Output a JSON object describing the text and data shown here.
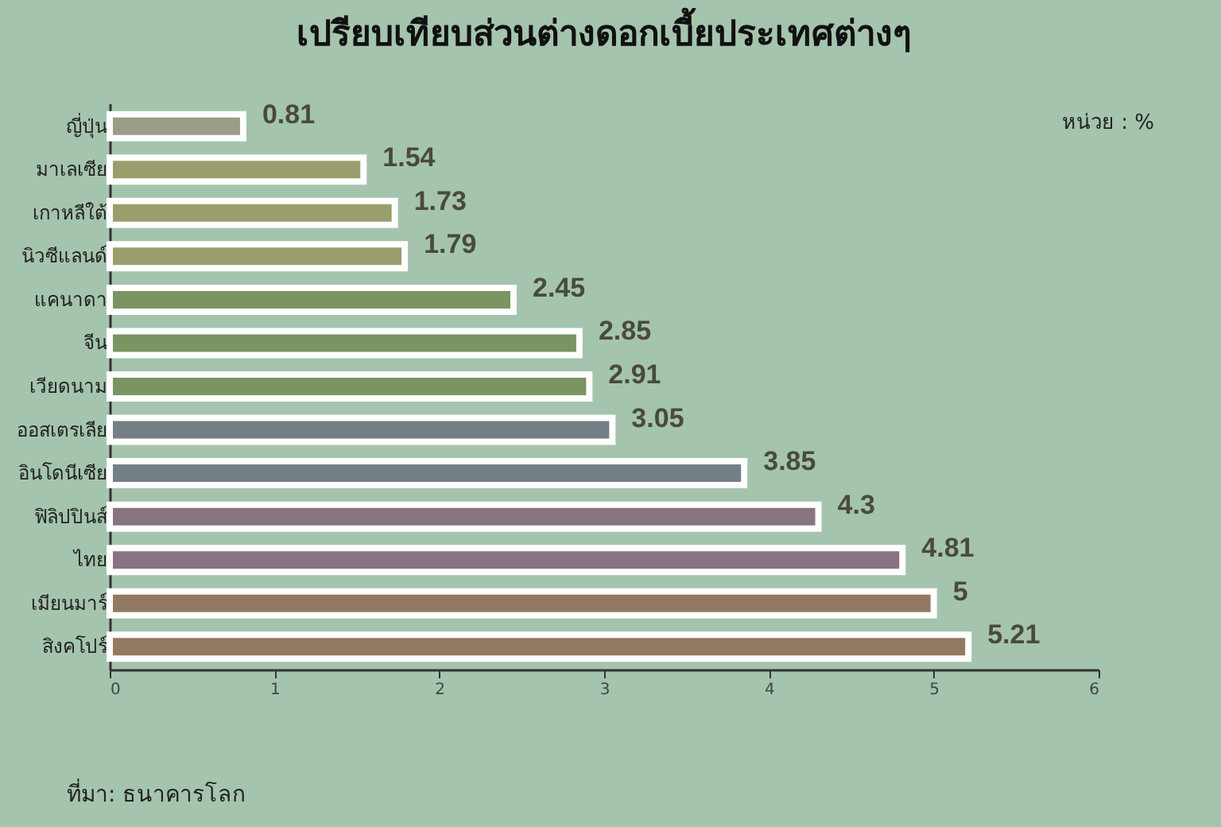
{
  "chart_data": {
    "type": "bar",
    "orientation": "horizontal",
    "title": "เปรียบเทียบส่วนต่างดอกเบี้ยประเทศต่างๆ",
    "categories": [
      "ญี่ปุ่น",
      "มาเลเซีย",
      "เกาหลีใต้",
      "นิวซีแลนด์",
      "แคนาดา",
      "จีน",
      "เวียดนาม",
      "ออสเตรเลีย",
      "อินโดนีเซีย",
      "ฟิลิปปินส์",
      "ไทย",
      "เมียนมาร์",
      "สิงคโปร์"
    ],
    "values": [
      0.81,
      1.54,
      1.73,
      1.79,
      2.45,
      2.85,
      2.91,
      3.05,
      3.85,
      4.3,
      4.81,
      5,
      5.21
    ],
    "colors": [
      "#9a9c86",
      "#9a9e6c",
      "#9a9e6c",
      "#9a9e6c",
      "#7a9462",
      "#7a9462",
      "#7a9462",
      "#737f84",
      "#737f84",
      "#877482",
      "#877482",
      "#937862",
      "#937862"
    ],
    "xlim": [
      0,
      6
    ],
    "xticks": [
      0,
      1,
      2,
      3,
      4,
      5,
      6
    ],
    "data_labels": true,
    "grid": false,
    "annotations": [
      "หน่วย : %",
      "ที่มา: ธนาคารโลก"
    ]
  }
}
